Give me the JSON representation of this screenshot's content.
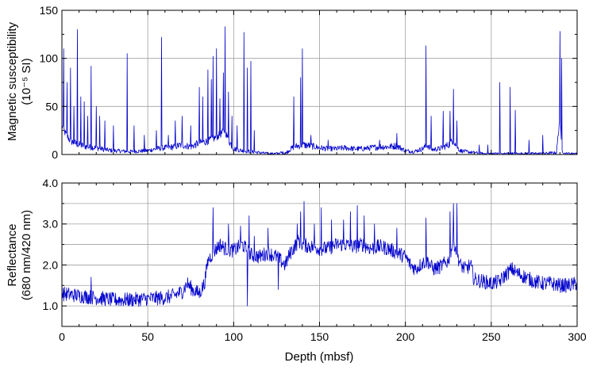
{
  "chart_data": [
    {
      "type": "line",
      "panel": "top",
      "ylabel_line1": "Magnetic susceptibility",
      "ylabel_line2": "(10⁻⁵ SI)",
      "xlim": [
        0,
        300
      ],
      "ylim": [
        0,
        150
      ],
      "xticks": [
        0,
        50,
        100,
        150,
        200,
        250,
        300
      ],
      "yticks": [
        0,
        50,
        100,
        150
      ],
      "ytick_labels": [
        "0",
        "50",
        "100",
        "150"
      ],
      "grid": true,
      "color": "#0000cc",
      "series": [
        {
          "baseline": [
            [
              0,
              30
            ],
            [
              2,
              22
            ],
            [
              5,
              14
            ],
            [
              10,
              10
            ],
            [
              15,
              8
            ],
            [
              20,
              7
            ],
            [
              25,
              5
            ],
            [
              30,
              4
            ],
            [
              40,
              3
            ],
            [
              50,
              4
            ],
            [
              55,
              6
            ],
            [
              60,
              7
            ],
            [
              65,
              8
            ],
            [
              70,
              10
            ],
            [
              75,
              8
            ],
            [
              80,
              12
            ],
            [
              85,
              14
            ],
            [
              90,
              18
            ],
            [
              93,
              22
            ],
            [
              95,
              25
            ],
            [
              97,
              15
            ],
            [
              100,
              6
            ],
            [
              105,
              4
            ],
            [
              110,
              3
            ],
            [
              115,
              2
            ],
            [
              120,
              1
            ],
            [
              125,
              1
            ],
            [
              128,
              2
            ],
            [
              130,
              1
            ],
            [
              132,
              4
            ],
            [
              135,
              8
            ],
            [
              140,
              10
            ],
            [
              145,
              9
            ],
            [
              150,
              7
            ],
            [
              155,
              6
            ],
            [
              160,
              6
            ],
            [
              165,
              7
            ],
            [
              170,
              6
            ],
            [
              175,
              6
            ],
            [
              180,
              7
            ],
            [
              185,
              8
            ],
            [
              190,
              8
            ],
            [
              195,
              9
            ],
            [
              200,
              4
            ],
            [
              205,
              3
            ],
            [
              210,
              6
            ],
            [
              213,
              10
            ],
            [
              215,
              5
            ],
            [
              220,
              6
            ],
            [
              225,
              10
            ],
            [
              228,
              15
            ],
            [
              230,
              8
            ],
            [
              232,
              4
            ],
            [
              235,
              3
            ],
            [
              240,
              2
            ],
            [
              245,
              1
            ],
            [
              250,
              1
            ],
            [
              255,
              1
            ],
            [
              260,
              1
            ],
            [
              265,
              1
            ],
            [
              270,
              1
            ],
            [
              280,
              1
            ],
            [
              288,
              2
            ],
            [
              290,
              40
            ],
            [
              291,
              5
            ],
            [
              293,
              1
            ],
            [
              300,
              1
            ]
          ],
          "spikes": [
            [
              1,
              110
            ],
            [
              3,
              75
            ],
            [
              5,
              90
            ],
            [
              7,
              50
            ],
            [
              9,
              130
            ],
            [
              11,
              60
            ],
            [
              13,
              55
            ],
            [
              15,
              40
            ],
            [
              17,
              92
            ],
            [
              20,
              50
            ],
            [
              22,
              40
            ],
            [
              25,
              35
            ],
            [
              30,
              30
            ],
            [
              38,
              105
            ],
            [
              42,
              30
            ],
            [
              48,
              20
            ],
            [
              55,
              25
            ],
            [
              58,
              122
            ],
            [
              62,
              20
            ],
            [
              66,
              35
            ],
            [
              70,
              40
            ],
            [
              75,
              30
            ],
            [
              80,
              70
            ],
            [
              82,
              60
            ],
            [
              85,
              88
            ],
            [
              87,
              78
            ],
            [
              88,
              102
            ],
            [
              90,
              110
            ],
            [
              92,
              58
            ],
            [
              94,
              85
            ],
            [
              95,
              133
            ],
            [
              97,
              65
            ],
            [
              99,
              40
            ],
            [
              102,
              30
            ],
            [
              106,
              127
            ],
            [
              108,
              90
            ],
            [
              110,
              97
            ],
            [
              112,
              25
            ],
            [
              135,
              60
            ],
            [
              139,
              80
            ],
            [
              140,
              110
            ],
            [
              145,
              20
            ],
            [
              155,
              15
            ],
            [
              185,
              15
            ],
            [
              195,
              22
            ],
            [
              212,
              113
            ],
            [
              215,
              40
            ],
            [
              222,
              45
            ],
            [
              226,
              45
            ],
            [
              228,
              68
            ],
            [
              230,
              35
            ],
            [
              243,
              10
            ],
            [
              248,
              10
            ],
            [
              255,
              75
            ],
            [
              261,
              70
            ],
            [
              264,
              46
            ],
            [
              272,
              15
            ],
            [
              280,
              20
            ],
            [
              290,
              128
            ],
            [
              291,
              100
            ]
          ],
          "amplitude": 4
        }
      ]
    },
    {
      "type": "line",
      "panel": "bottom",
      "ylabel_line1": "Reflectance",
      "ylabel_line2": "(680 nm/420 nm)",
      "xlabel": "Depth (mbsf)",
      "xlim": [
        0,
        300
      ],
      "ylim": [
        0.5,
        4.0
      ],
      "xticks": [
        0,
        50,
        100,
        150,
        200,
        250,
        300
      ],
      "xtick_labels": [
        "0",
        "50",
        "100",
        "150",
        "200",
        "250",
        "300"
      ],
      "yticks": [
        1.0,
        2.0,
        3.0,
        4.0
      ],
      "ytick_labels": [
        "1.0",
        "2.0",
        "3.0",
        "4.0"
      ],
      "grid": true,
      "color": "#0000cc",
      "series": [
        {
          "baseline": [
            [
              0,
              1.3
            ],
            [
              10,
              1.25
            ],
            [
              20,
              1.2
            ],
            [
              30,
              1.15
            ],
            [
              40,
              1.15
            ],
            [
              50,
              1.18
            ],
            [
              60,
              1.2
            ],
            [
              65,
              1.25
            ],
            [
              70,
              1.35
            ],
            [
              73,
              1.55
            ],
            [
              76,
              1.4
            ],
            [
              80,
              1.3
            ],
            [
              83,
              1.55
            ],
            [
              85,
              2.1
            ],
            [
              88,
              2.3
            ],
            [
              92,
              2.5
            ],
            [
              95,
              2.4
            ],
            [
              100,
              2.35
            ],
            [
              105,
              2.5
            ],
            [
              110,
              2.25
            ],
            [
              115,
              2.2
            ],
            [
              120,
              2.3
            ],
            [
              125,
              2.2
            ],
            [
              130,
              2.0
            ],
            [
              133,
              2.3
            ],
            [
              138,
              2.6
            ],
            [
              140,
              2.5
            ],
            [
              145,
              2.45
            ],
            [
              150,
              2.4
            ],
            [
              155,
              2.4
            ],
            [
              160,
              2.5
            ],
            [
              165,
              2.5
            ],
            [
              170,
              2.45
            ],
            [
              175,
              2.5
            ],
            [
              180,
              2.4
            ],
            [
              185,
              2.45
            ],
            [
              190,
              2.4
            ],
            [
              195,
              2.3
            ],
            [
              200,
              2.2
            ],
            [
              203,
              2.0
            ],
            [
              206,
              1.9
            ],
            [
              210,
              2.05
            ],
            [
              213,
              2.1
            ],
            [
              216,
              1.9
            ],
            [
              220,
              1.95
            ],
            [
              225,
              2.1
            ],
            [
              228,
              2.6
            ],
            [
              230,
              2.3
            ],
            [
              232,
              2.0
            ],
            [
              235,
              1.9
            ],
            [
              238,
              2.0
            ],
            [
              240,
              1.65
            ],
            [
              245,
              1.6
            ],
            [
              250,
              1.55
            ],
            [
              255,
              1.6
            ],
            [
              258,
              1.75
            ],
            [
              262,
              1.9
            ],
            [
              265,
              1.8
            ],
            [
              270,
              1.7
            ],
            [
              275,
              1.6
            ],
            [
              280,
              1.55
            ],
            [
              285,
              1.55
            ],
            [
              290,
              1.5
            ],
            [
              295,
              1.5
            ],
            [
              300,
              1.55
            ]
          ],
          "spikes": [
            [
              17,
              1.7
            ],
            [
              88,
              3.4
            ],
            [
              97,
              3.0
            ],
            [
              104,
              2.95
            ],
            [
              109,
              3.2
            ],
            [
              112,
              2.7
            ],
            [
              120,
              2.9
            ],
            [
              137,
              3.0
            ],
            [
              139,
              3.3
            ],
            [
              141,
              3.55
            ],
            [
              147,
              3.0
            ],
            [
              151,
              3.4
            ],
            [
              157,
              3.1
            ],
            [
              164,
              3.1
            ],
            [
              168,
              3.3
            ],
            [
              172,
              3.45
            ],
            [
              176,
              3.2
            ],
            [
              182,
              3.0
            ],
            [
              195,
              2.9
            ],
            [
              212,
              3.15
            ],
            [
              226,
              3.3
            ],
            [
              228,
              3.5
            ],
            [
              230,
              3.5
            ],
            [
              108,
              1.0
            ],
            [
              126,
              1.4
            ]
          ],
          "amplitude": 0.18
        }
      ]
    }
  ]
}
